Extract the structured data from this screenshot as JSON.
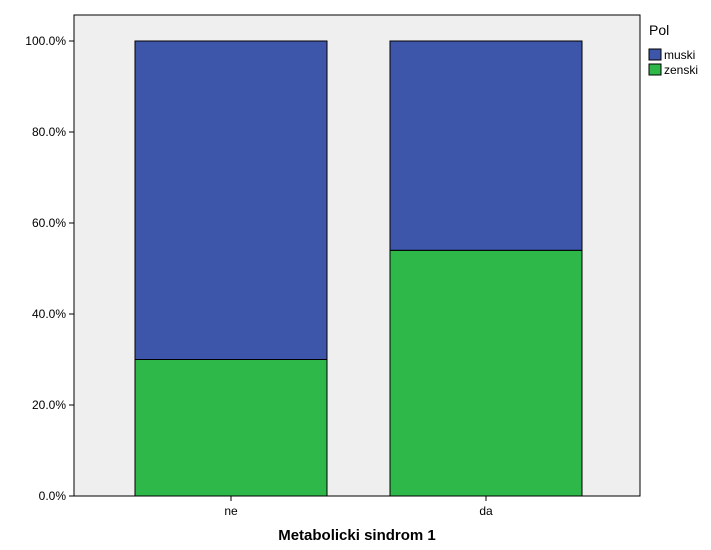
{
  "chart_data": {
    "type": "bar",
    "stacked": true,
    "categories": [
      "ne",
      "da"
    ],
    "series": [
      {
        "name": "zenski",
        "values": [
          30.0,
          54.0
        ],
        "color": "#2fb84a"
      },
      {
        "name": "muski",
        "values": [
          70.0,
          46.0
        ],
        "color": "#3e56aa"
      }
    ],
    "title": "",
    "xlabel": "Metabolicki sindrom 1",
    "ylabel": "",
    "ylim": [
      0,
      100
    ],
    "yticks": [
      "0.0%",
      "20.0%",
      "40.0%",
      "60.0%",
      "80.0%",
      "100.0%"
    ],
    "grid": false,
    "plot_background": "#efefef",
    "legend": {
      "title": "Pol",
      "placement": "top-right",
      "items": [
        {
          "label": "muski",
          "color": "#3e56aa"
        },
        {
          "label": "zenski",
          "color": "#2fb84a"
        }
      ]
    }
  }
}
